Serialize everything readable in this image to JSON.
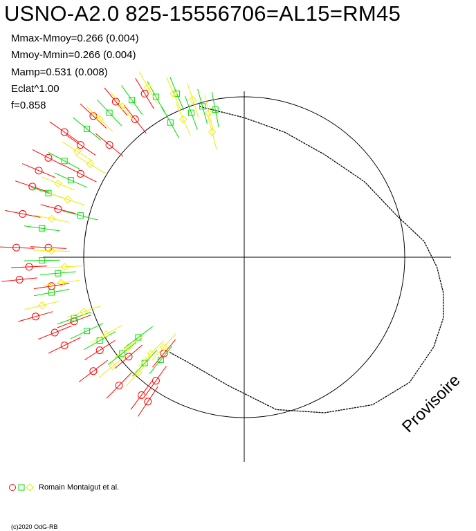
{
  "header": {
    "title": "USNO-A2.0 825-15556706=AL15=RM45",
    "stats": [
      "Mmax-Mmoy=0.266 (0.004)",
      "Mmoy-Mmin=0.266 (0.004)",
      "Mamp=0.531 (0.008)",
      "Eclat^1.00",
      "f=0.858"
    ]
  },
  "watermark": "Provisoire",
  "legend": {
    "label": "Romain Montaigut et al.",
    "symbols": [
      "red-circle-icon",
      "green-square-icon",
      "yellow-diamond-icon"
    ]
  },
  "copyright": "(c)2020 OdG-RB",
  "colors": {
    "series_red": "#ff0000",
    "series_green": "#00dd00",
    "series_yellow": "#eeee00",
    "axes": "#000000",
    "curve": "#000000"
  },
  "chart_data": {
    "type": "scatter",
    "coordinate_system": "polar (phase as angle, normalized magnitude as radius)",
    "title": "USNO-A2.0 825-15556706=AL15=RM45",
    "reference_circle_radius": 1.0,
    "axis_range": [
      -1.3,
      1.3
    ],
    "grid": false,
    "legend_position": "bottom-left",
    "model_curve": {
      "name": "",
      "points": [
        [
          -0.28,
          0.94
        ],
        [
          0.0,
          0.87
        ],
        [
          0.25,
          0.78
        ],
        [
          0.5,
          0.64
        ],
        [
          0.75,
          0.47
        ],
        [
          0.95,
          0.26
        ],
        [
          1.12,
          0.1
        ],
        [
          1.2,
          -0.06
        ],
        [
          1.24,
          -0.22
        ],
        [
          1.24,
          -0.38
        ],
        [
          1.18,
          -0.56
        ],
        [
          1.03,
          -0.78
        ],
        [
          0.8,
          -0.92
        ],
        [
          0.5,
          -0.97
        ],
        [
          0.2,
          -0.95
        ],
        [
          -0.1,
          -0.8
        ],
        [
          -0.36,
          -0.65
        ],
        [
          -0.47,
          -0.59
        ]
      ]
    },
    "series": [
      {
        "marker": "circle",
        "color": "red",
        "points": [
          [
            -0.94,
            0.88
          ],
          [
            -1.12,
            0.78
          ],
          [
            -1.22,
            0.62
          ],
          [
            -1.32,
            0.44
          ],
          [
            -1.38,
            0.27
          ],
          [
            -1.42,
            0.06
          ],
          [
            -1.4,
            -0.14
          ],
          [
            -1.3,
            -0.37
          ],
          [
            -1.12,
            -0.55
          ],
          [
            -0.94,
            -0.71
          ],
          [
            -0.78,
            -0.8
          ],
          [
            -0.64,
            -0.86
          ],
          [
            -0.55,
            -0.77
          ],
          [
            -0.5,
            -0.6
          ],
          [
            -0.8,
            0.97
          ],
          [
            -0.62,
            1.02
          ],
          [
            -0.84,
            0.7
          ],
          [
            -1.02,
            0.52
          ],
          [
            -1.16,
            0.3
          ],
          [
            -1.22,
            0.06
          ],
          [
            -1.2,
            -0.18
          ],
          [
            -1.06,
            -0.4
          ],
          [
            -0.9,
            -0.58
          ],
          [
            -0.72,
            -0.62
          ],
          [
            -1.28,
            0.54
          ],
          [
            -1.34,
            -0.06
          ],
          [
            -0.68,
            0.86
          ],
          [
            -1.18,
            -0.47
          ],
          [
            -1.02,
            0.7
          ],
          [
            -0.6,
            -0.9
          ]
        ]
      },
      {
        "marker": "square",
        "color": "green",
        "points": [
          [
            -0.7,
            0.98
          ],
          [
            -0.55,
            1.0
          ],
          [
            -0.42,
            1.02
          ],
          [
            -0.33,
            0.9
          ],
          [
            -0.46,
            0.84
          ],
          [
            -0.98,
            0.8
          ],
          [
            -1.12,
            0.6
          ],
          [
            -1.22,
            0.4
          ],
          [
            -1.26,
            0.18
          ],
          [
            -1.26,
            -0.02
          ],
          [
            -1.2,
            -0.22
          ],
          [
            -1.06,
            -0.38
          ],
          [
            -0.9,
            -0.52
          ],
          [
            -0.76,
            -0.6
          ],
          [
            -0.62,
            -0.66
          ],
          [
            -0.52,
            -0.64
          ],
          [
            -0.26,
            0.94
          ],
          [
            -0.18,
            0.92
          ],
          [
            -1.08,
            0.48
          ],
          [
            -1.16,
            -0.1
          ],
          [
            -0.84,
            0.9
          ],
          [
            -0.98,
            -0.46
          ],
          [
            -0.66,
            -0.5
          ],
          [
            -1.02,
            0.26
          ]
        ]
      },
      {
        "marker": "diamond",
        "color": "yellow",
        "points": [
          [
            -0.6,
            1.06
          ],
          [
            -0.44,
            1.02
          ],
          [
            -0.32,
            0.98
          ],
          [
            -0.22,
            0.9
          ],
          [
            -0.2,
            0.78
          ],
          [
            -0.9,
            0.86
          ],
          [
            -1.04,
            0.66
          ],
          [
            -1.16,
            0.46
          ],
          [
            -1.2,
            0.24
          ],
          [
            -1.2,
            0.04
          ],
          [
            -1.14,
            -0.16
          ],
          [
            -1.0,
            -0.34
          ],
          [
            -0.86,
            -0.48
          ],
          [
            -0.72,
            -0.56
          ],
          [
            -0.58,
            -0.6
          ],
          [
            -0.5,
            -0.56
          ],
          [
            -0.76,
            0.94
          ],
          [
            -1.1,
            0.36
          ],
          [
            -1.12,
            -0.06
          ],
          [
            -0.82,
            -0.68
          ],
          [
            -0.66,
            -0.72
          ],
          [
            -0.96,
            0.58
          ],
          [
            -1.26,
            -0.3
          ],
          [
            -0.38,
            0.86
          ]
        ]
      }
    ]
  }
}
